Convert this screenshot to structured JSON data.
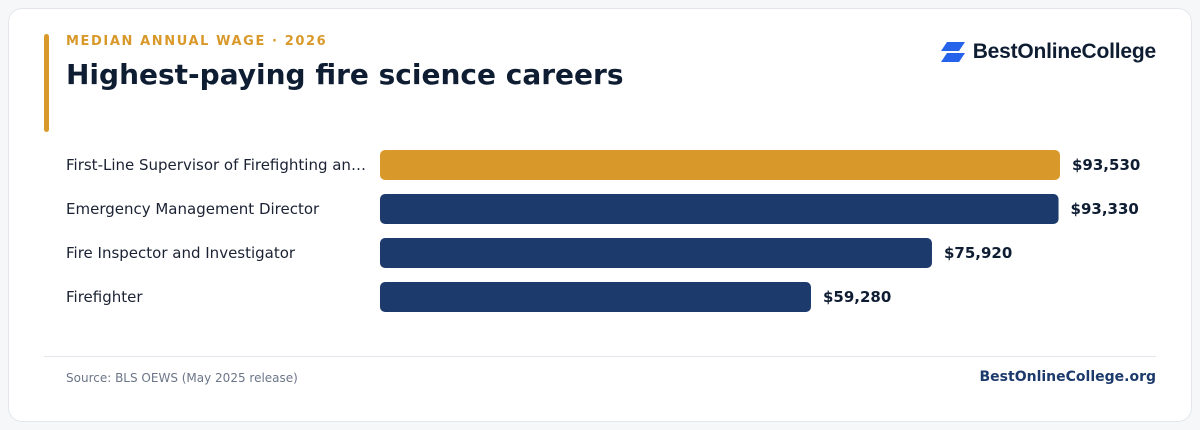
{
  "header": {
    "eyebrow": "MEDIAN ANNUAL WAGE · 2026",
    "title": "Highest-paying fire science careers"
  },
  "brand": {
    "logo_text": "BestOnlineCollege",
    "logo_icon": "stacked-parallelogram-logo-icon",
    "logo_color": "#2563eb"
  },
  "colors": {
    "highlight": "#d9992a",
    "bar": "#1c3a6b",
    "label_text": "#1a2233",
    "value_text": "#0f1d33"
  },
  "chart_data": {
    "type": "bar",
    "orientation": "horizontal",
    "title": "Highest-paying fire science careers",
    "subtitle": "MEDIAN ANNUAL WAGE · 2026",
    "categories": [
      "First-Line Supervisor of Firefighting an…",
      "Emergency Management Director",
      "Fire Inspector and Investigator",
      "Firefighter"
    ],
    "values": [
      93530,
      93330,
      75920,
      59280
    ],
    "value_labels": [
      "$93,530",
      "$93,330",
      "$75,920",
      "$59,280"
    ],
    "highlighted_index": 0,
    "xlim": [
      0,
      93530
    ],
    "grid": false,
    "legend": "none"
  },
  "footer": {
    "source": "Source: BLS OEWS (May 2025 release)",
    "site": "BestOnlineCollege.org"
  }
}
